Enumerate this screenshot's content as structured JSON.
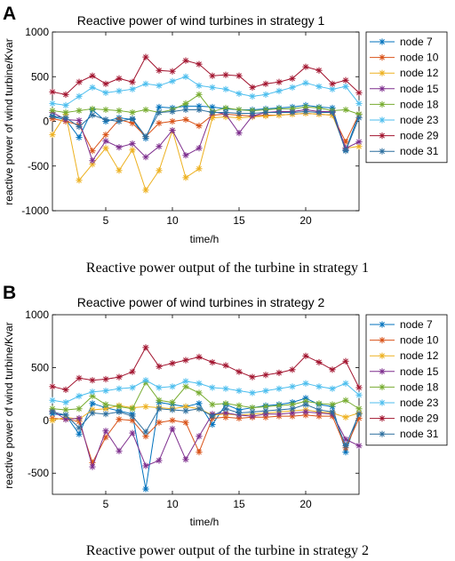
{
  "figure": {
    "panels": [
      {
        "letter": "A",
        "caption": "Reactive power output of the turbine in strategy 1"
      },
      {
        "letter": "B",
        "caption": "Reactive power output of the turbine in strategy 2"
      }
    ]
  },
  "chart_data": [
    {
      "type": "line",
      "title": "Reactive power of wind turbines in strategy 1",
      "xlabel": "time/h",
      "ylabel": "reactive power of wind turbine/Kvar",
      "xlim": [
        1,
        24
      ],
      "ylim": [
        -1000,
        1000
      ],
      "xticks": [
        5,
        10,
        15,
        20
      ],
      "yticks": [
        -1000,
        -500,
        0,
        500,
        1000
      ],
      "grid": false,
      "legend_position": "right-outside",
      "x": [
        1,
        2,
        3,
        4,
        5,
        6,
        7,
        8,
        9,
        10,
        11,
        12,
        13,
        14,
        15,
        16,
        17,
        18,
        19,
        20,
        21,
        22,
        23,
        24
      ],
      "series": [
        {
          "name": "node 7",
          "color": "#0072bd",
          "values": [
            50,
            20,
            -180,
            130,
            0,
            40,
            20,
            -190,
            160,
            150,
            170,
            170,
            160,
            140,
            130,
            130,
            140,
            150,
            160,
            180,
            160,
            150,
            -320,
            80
          ]
        },
        {
          "name": "node 10",
          "color": "#d95319",
          "values": [
            30,
            0,
            -40,
            -330,
            -150,
            20,
            -20,
            -170,
            -20,
            0,
            20,
            -50,
            70,
            80,
            70,
            60,
            70,
            70,
            80,
            90,
            80,
            70,
            -230,
            80
          ]
        },
        {
          "name": "node 12",
          "color": "#edb120",
          "values": [
            -150,
            80,
            -660,
            -480,
            -300,
            -550,
            -320,
            -770,
            -550,
            -100,
            -630,
            -530,
            40,
            50,
            40,
            50,
            60,
            70,
            80,
            90,
            80,
            70,
            -300,
            -280
          ]
        },
        {
          "name": "node 15",
          "color": "#7e2f8e",
          "values": [
            100,
            20,
            10,
            -440,
            -220,
            -290,
            -250,
            -400,
            -280,
            -100,
            -380,
            -300,
            110,
            80,
            -130,
            60,
            100,
            110,
            110,
            130,
            110,
            110,
            -300,
            -230
          ]
        },
        {
          "name": "node 18",
          "color": "#77ac30",
          "values": [
            120,
            100,
            120,
            140,
            130,
            120,
            100,
            130,
            100,
            130,
            200,
            300,
            110,
            150,
            130,
            120,
            130,
            140,
            140,
            160,
            150,
            120,
            130,
            80
          ]
        },
        {
          "name": "node 23",
          "color": "#4dbeee",
          "values": [
            200,
            180,
            280,
            380,
            320,
            340,
            360,
            420,
            400,
            450,
            500,
            400,
            380,
            360,
            310,
            280,
            300,
            340,
            380,
            430,
            390,
            360,
            390,
            200
          ]
        },
        {
          "name": "node 29",
          "color": "#a2142f",
          "values": [
            330,
            300,
            440,
            510,
            420,
            480,
            440,
            720,
            570,
            560,
            680,
            640,
            510,
            520,
            510,
            380,
            420,
            440,
            480,
            610,
            570,
            420,
            460,
            320
          ]
        },
        {
          "name": "node 31",
          "color": "#2c6e9e",
          "values": [
            60,
            40,
            -60,
            70,
            20,
            0,
            30,
            -170,
            100,
            110,
            130,
            130,
            100,
            100,
            90,
            90,
            100,
            100,
            100,
            110,
            100,
            100,
            -330,
            40
          ]
        }
      ]
    },
    {
      "type": "line",
      "title": "Reactive power of wind turbines in strategy 2",
      "xlabel": "time/h",
      "ylabel": "reactive power of wind turbine/Kvar",
      "xlim": [
        1,
        24
      ],
      "ylim": [
        -700,
        1000
      ],
      "xticks": [
        5,
        10,
        15,
        20
      ],
      "yticks": [
        -500,
        0,
        500,
        1000
      ],
      "grid": false,
      "legend_position": "right-outside",
      "x": [
        1,
        2,
        3,
        4,
        5,
        6,
        7,
        8,
        9,
        10,
        11,
        12,
        13,
        14,
        15,
        16,
        17,
        18,
        19,
        20,
        21,
        22,
        23,
        24
      ],
      "series": [
        {
          "name": "node 7",
          "color": "#0072bd",
          "values": [
            60,
            50,
            -130,
            160,
            120,
            90,
            60,
            -650,
            170,
            150,
            130,
            160,
            -40,
            150,
            100,
            120,
            140,
            150,
            170,
            210,
            150,
            130,
            -300,
            70
          ]
        },
        {
          "name": "node 10",
          "color": "#d95319",
          "values": [
            20,
            10,
            -10,
            -400,
            -160,
            10,
            0,
            -150,
            -20,
            0,
            -20,
            -300,
            20,
            30,
            20,
            30,
            30,
            40,
            40,
            50,
            40,
            40,
            -260,
            20
          ]
        },
        {
          "name": "node 12",
          "color": "#edb120",
          "values": [
            0,
            30,
            10,
            100,
            110,
            140,
            120,
            130,
            120,
            110,
            130,
            110,
            50,
            60,
            50,
            60,
            70,
            80,
            90,
            100,
            80,
            70,
            30,
            70
          ]
        },
        {
          "name": "node 15",
          "color": "#7e2f8e",
          "values": [
            90,
            10,
            20,
            -440,
            -100,
            -290,
            -120,
            -430,
            -380,
            -80,
            -370,
            -150,
            60,
            70,
            50,
            40,
            60,
            60,
            70,
            80,
            70,
            60,
            -180,
            -240
          ]
        },
        {
          "name": "node 18",
          "color": "#77ac30",
          "values": [
            110,
            100,
            110,
            230,
            150,
            130,
            110,
            360,
            190,
            170,
            320,
            260,
            150,
            160,
            140,
            120,
            130,
            140,
            150,
            180,
            160,
            150,
            190,
            110
          ]
        },
        {
          "name": "node 23",
          "color": "#4dbeee",
          "values": [
            190,
            170,
            230,
            270,
            280,
            300,
            310,
            380,
            310,
            320,
            370,
            350,
            310,
            300,
            280,
            260,
            280,
            300,
            320,
            350,
            320,
            300,
            350,
            240
          ]
        },
        {
          "name": "node 29",
          "color": "#a2142f",
          "values": [
            320,
            290,
            400,
            380,
            390,
            410,
            460,
            690,
            510,
            540,
            570,
            600,
            550,
            520,
            460,
            410,
            430,
            450,
            480,
            610,
            550,
            480,
            560,
            310
          ]
        },
        {
          "name": "node 31",
          "color": "#2c6e9e",
          "values": [
            80,
            50,
            -70,
            70,
            60,
            80,
            40,
            -110,
            110,
            100,
            90,
            110,
            40,
            110,
            70,
            80,
            90,
            100,
            110,
            150,
            100,
            80,
            -240,
            60
          ]
        }
      ]
    }
  ]
}
